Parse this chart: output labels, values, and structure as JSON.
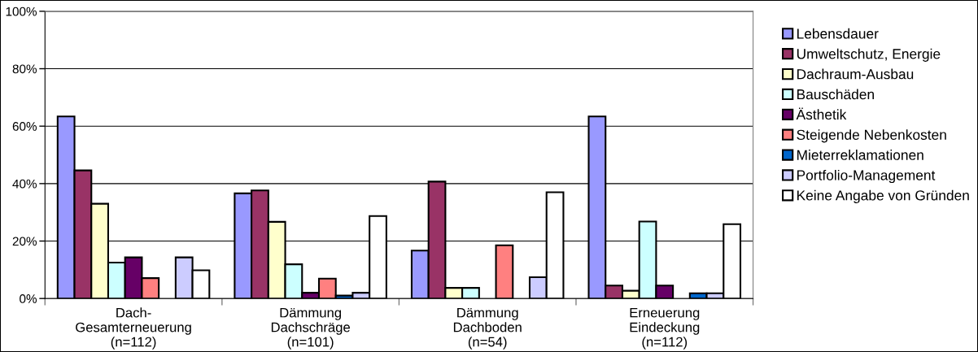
{
  "chart_data": {
    "type": "bar",
    "categories": [
      "Dach-\nGesamterneuerung\n(n=112)",
      "Dämmung\nDachschräge\n(n=101)",
      "Dämmung\nDachboden\n(n=54)",
      "Erneuerung\nEindeckung\n(n=112)"
    ],
    "series": [
      {
        "name": "Lebensdauer",
        "color": "#9999ff",
        "values": [
          63.4,
          36.6,
          16.7,
          63.4
        ]
      },
      {
        "name": "Umweltschutz, Energie",
        "color": "#993366",
        "values": [
          44.6,
          37.6,
          40.7,
          4.5
        ]
      },
      {
        "name": "Dachraum-Ausbau",
        "color": "#ffffcc",
        "values": [
          33.0,
          26.7,
          3.7,
          2.7
        ]
      },
      {
        "name": "Bauschäden",
        "color": "#ccffff",
        "values": [
          12.5,
          11.9,
          3.7,
          26.8
        ]
      },
      {
        "name": "Ästhetik",
        "color": "#660066",
        "values": [
          14.3,
          2.0,
          null,
          4.5
        ]
      },
      {
        "name": "Steigende Nebenkosten",
        "color": "#ff8080",
        "values": [
          7.1,
          6.9,
          18.5,
          null
        ]
      },
      {
        "name": "Mieterreklamationen",
        "color": "#0066cc",
        "values": [
          null,
          1.0,
          null,
          1.8
        ]
      },
      {
        "name": "Portfolio-Management",
        "color": "#ccccff",
        "values": [
          14.3,
          2.0,
          7.4,
          1.8
        ]
      },
      {
        "name": "Keine Angabe von Gründen",
        "color": "#ffffff",
        "values": [
          9.8,
          28.7,
          37.0,
          25.9
        ]
      }
    ],
    "ylim": [
      0,
      100
    ],
    "yticks": [
      {
        "value": 0,
        "label": "0%"
      },
      {
        "value": 20,
        "label": "20%"
      },
      {
        "value": 40,
        "label": "40%"
      },
      {
        "value": 60,
        "label": "60%"
      },
      {
        "value": 80,
        "label": "80%"
      },
      {
        "value": 100,
        "label": "100%"
      }
    ],
    "grid": "y",
    "legend": "right"
  }
}
